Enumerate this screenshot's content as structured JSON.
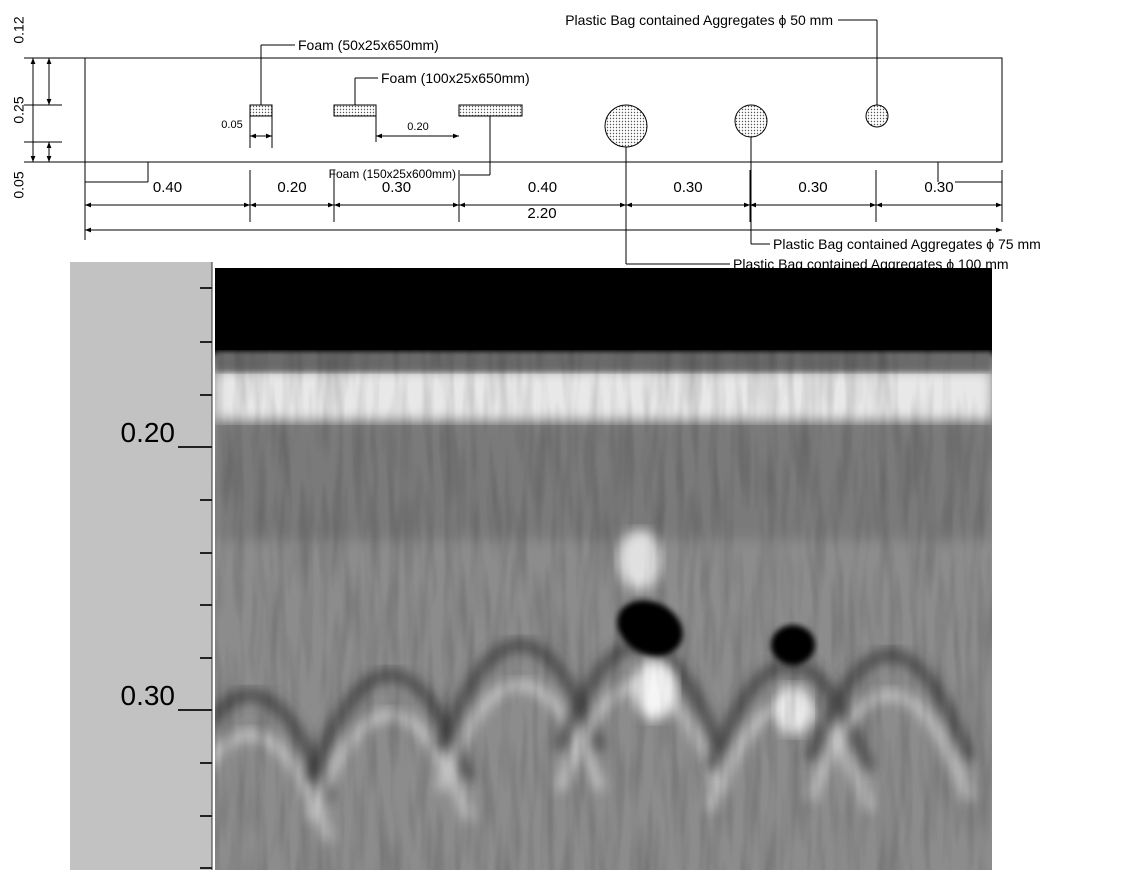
{
  "diagram": {
    "vertical_dims": [
      "0.12",
      "0.25",
      "0.05"
    ],
    "horizontal_dims": [
      "0.40",
      "0.20",
      "0.30",
      "0.40",
      "0.30",
      "0.30",
      "0.30"
    ],
    "total_dim": "2.20",
    "gap_dims": [
      "0.05",
      "0.20"
    ],
    "labels": {
      "foam_50": "Foam (50x25x650mm)",
      "foam_100": "Foam (100x25x650mm)",
      "foam_150": "Foam (150x25x600mm)",
      "bag_50": "Plastic Bag contained Aggregates ϕ 50 mm",
      "bag_75": "Plastic Bag contained Aggregates ϕ 75 mm",
      "bag_100": "Plastic Bag contained Aggregates ϕ 100 mm"
    }
  },
  "radargram": {
    "depth_labels": [
      "0.20",
      "0.30"
    ]
  }
}
